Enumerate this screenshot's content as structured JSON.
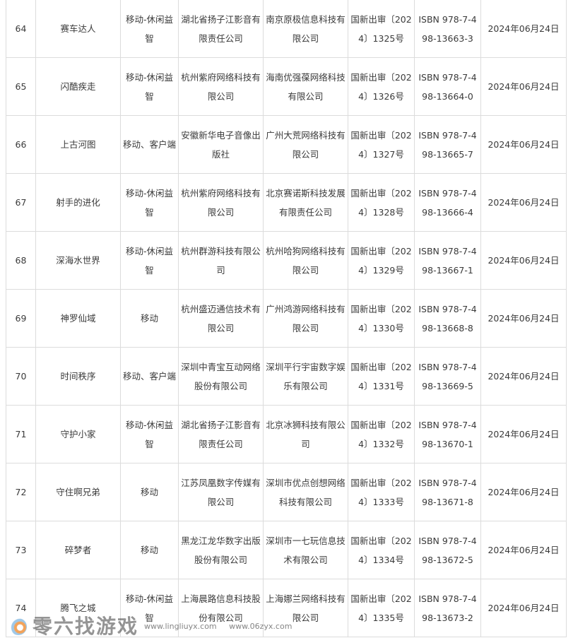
{
  "rows": [
    {
      "no": "64",
      "name": "赛车达人",
      "type": "移动-休闲益智",
      "publisher": "湖北省扬子江影音有限责任公司",
      "operator": "南京原极信息科技有限公司",
      "approval": "国新出审〔2024〕1325号",
      "isbn": "ISBN 978-7-498-13663-3",
      "date": "2024年06月24日"
    },
    {
      "no": "65",
      "name": "闪酷疾走",
      "type": "移动-休闲益智",
      "publisher": "杭州紫府网络科技有限公司",
      "operator": "海南优强葆网络科技有限公司",
      "approval": "国新出审〔2024〕1326号",
      "isbn": "ISBN 978-7-498-13664-0",
      "date": "2024年06月24日"
    },
    {
      "no": "66",
      "name": "上古河图",
      "type": "移动、客户端",
      "publisher": "安徽新华电子音像出版社",
      "operator": "广州大荒网络科技有限公司",
      "approval": "国新出审〔2024〕1327号",
      "isbn": "ISBN 978-7-498-13665-7",
      "date": "2024年06月24日"
    },
    {
      "no": "67",
      "name": "射手的进化",
      "type": "移动-休闲益智",
      "publisher": "杭州紫府网络科技有限公司",
      "operator": "北京赛诺斯科技发展有限责任公司",
      "approval": "国新出审〔2024〕1328号",
      "isbn": "ISBN 978-7-498-13666-4",
      "date": "2024年06月24日"
    },
    {
      "no": "68",
      "name": "深海水世界",
      "type": "移动-休闲益智",
      "publisher": "杭州群游科技有限公司",
      "operator": "杭州哈狗网络科技有限公司",
      "approval": "国新出审〔2024〕1329号",
      "isbn": "ISBN 978-7-498-13667-1",
      "date": "2024年06月24日"
    },
    {
      "no": "69",
      "name": "神罗仙域",
      "type": "移动",
      "publisher": "杭州盛迈通信技术有限公司",
      "operator": "广州鸿游网络科技有限公司",
      "approval": "国新出审〔2024〕1330号",
      "isbn": "ISBN 978-7-498-13668-8",
      "date": "2024年06月24日"
    },
    {
      "no": "70",
      "name": "时间秩序",
      "type": "移动、客户端",
      "publisher": "深圳中青宝互动网络股份有限公司",
      "operator": "深圳平行宇宙数字娱乐有限公司",
      "approval": "国新出审〔2024〕1331号",
      "isbn": "ISBN 978-7-498-13669-5",
      "date": "2024年06月24日"
    },
    {
      "no": "71",
      "name": "守护小家",
      "type": "移动-休闲益智",
      "publisher": "湖北省扬子江影音有限责任公司",
      "operator": "北京冰狮科技有限公司",
      "approval": "国新出审〔2024〕1332号",
      "isbn": "ISBN 978-7-498-13670-1",
      "date": "2024年06月24日"
    },
    {
      "no": "72",
      "name": "守住啊兄弟",
      "type": "移动",
      "publisher": "江苏凤凰数字传媒有限公司",
      "operator": "深圳市优点创想网络科技有限公司",
      "approval": "国新出审〔2024〕1333号",
      "isbn": "ISBN 978-7-498-13671-8",
      "date": "2024年06月24日"
    },
    {
      "no": "73",
      "name": "碎梦者",
      "type": "移动",
      "publisher": "黑龙江龙华数字出版股份有限公司",
      "operator": "深圳市一七玩信息技术有限公司",
      "approval": "国新出审〔2024〕1334号",
      "isbn": "ISBN 978-7-498-13672-5",
      "date": "2024年06月24日"
    },
    {
      "no": "74",
      "name": "腾飞之城",
      "type": "移动-休闲益智",
      "publisher": "上海晨路信息科技股份有限公司",
      "operator": "上海娜兰网络科技有限公司",
      "approval": "国新出审〔2024〕1335号",
      "isbn": "ISBN 978-7-498-13673-2",
      "date": "2024年06月24日"
    }
  ],
  "watermark": {
    "title": "零六找游戏",
    "urls": "www.lingliuyx.com www.06zyx.com"
  }
}
